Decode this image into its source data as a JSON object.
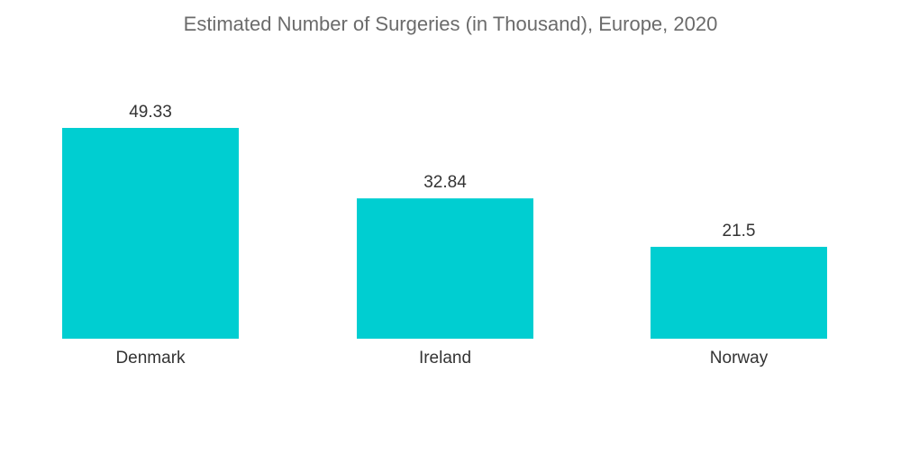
{
  "chart_data": {
    "type": "bar",
    "title": "Estimated Number of Surgeries (in Thousand), Europe, 2020",
    "categories": [
      "Denmark",
      "Ireland",
      "Norway"
    ],
    "values": [
      49.33,
      32.84,
      21.5
    ],
    "value_labels": [
      "49.33",
      "32.84",
      "21.5"
    ],
    "xlabel": "",
    "ylabel": "",
    "ylim": [
      0,
      49.33
    ],
    "grid": false,
    "legend": "none",
    "bar_color": "#00ced1"
  }
}
